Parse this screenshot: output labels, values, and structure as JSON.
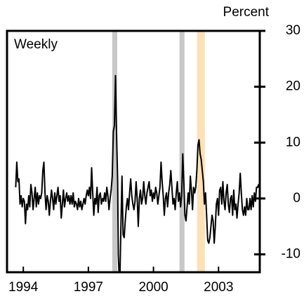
{
  "chart_data": {
    "type": "line",
    "y_label": "Percent",
    "annotation": "Weekly",
    "xlim": [
      1993.25,
      2004.9
    ],
    "xticks": [
      1994,
      1997,
      2000,
      2003
    ],
    "ylim": [
      -13.2,
      30
    ],
    "yticks": [
      -10,
      0,
      10,
      20,
      30
    ],
    "y_axis_side": "right",
    "shaded": [
      {
        "start": 1998.1,
        "end": 1998.33,
        "color": "#c8c8c8"
      },
      {
        "start": 2001.2,
        "end": 2001.43,
        "color": "#c8c8c8"
      },
      {
        "start": 2002.01,
        "end": 2002.37,
        "color": "#fde0b4"
      }
    ],
    "series": [
      {
        "color": "#000000",
        "x": [
          1993.65,
          1993.7,
          1993.75,
          1993.8,
          1993.85,
          1993.9,
          1993.95,
          1994,
          1994.05,
          1994.1,
          1994.15,
          1994.2,
          1994.25,
          1994.3,
          1994.35,
          1994.4,
          1994.45,
          1994.5,
          1994.55,
          1994.6,
          1994.65,
          1994.7,
          1994.75,
          1994.8,
          1994.85,
          1994.9,
          1994.95,
          1995,
          1995.05,
          1995.1,
          1995.15,
          1995.2,
          1995.25,
          1995.3,
          1995.35,
          1995.4,
          1995.45,
          1995.5,
          1995.55,
          1995.6,
          1995.65,
          1995.7,
          1995.75,
          1995.8,
          1995.85,
          1995.9,
          1995.95,
          1996,
          1996.05,
          1996.1,
          1996.15,
          1996.2,
          1996.25,
          1996.3,
          1996.35,
          1996.4,
          1996.45,
          1996.5,
          1996.55,
          1996.6,
          1996.65,
          1996.7,
          1996.75,
          1996.8,
          1996.85,
          1996.9,
          1996.95,
          1997,
          1997.05,
          1997.1,
          1997.15,
          1997.2,
          1997.25,
          1997.3,
          1997.35,
          1997.4,
          1997.45,
          1997.5,
          1997.55,
          1997.6,
          1997.65,
          1997.7,
          1997.75,
          1997.8,
          1997.85,
          1997.9,
          1997.95,
          1998,
          1998.05,
          1998.1,
          1998.15,
          1998.2,
          1998.25,
          1998.28,
          1998.32,
          1998.35,
          1998.38,
          1998.42,
          1998.46,
          1998.5,
          1998.55,
          1998.6,
          1998.65,
          1998.7,
          1998.75,
          1998.8,
          1998.85,
          1998.9,
          1998.95,
          1999,
          1999.05,
          1999.1,
          1999.15,
          1999.2,
          1999.25,
          1999.3,
          1999.35,
          1999.4,
          1999.45,
          1999.5,
          1999.55,
          1999.6,
          1999.65,
          1999.7,
          1999.75,
          1999.8,
          1999.85,
          1999.9,
          1999.95,
          2000,
          2000.05,
          2000.1,
          2000.15,
          2000.2,
          2000.25,
          2000.3,
          2000.35,
          2000.4,
          2000.45,
          2000.5,
          2000.55,
          2000.6,
          2000.65,
          2000.7,
          2000.75,
          2000.8,
          2000.85,
          2000.9,
          2000.95,
          2001,
          2001.05,
          2001.1,
          2001.15,
          2001.2,
          2001.25,
          2001.3,
          2001.35,
          2001.4,
          2001.45,
          2001.5,
          2001.55,
          2001.6,
          2001.65,
          2001.7,
          2001.75,
          2001.8,
          2001.85,
          2001.9,
          2001.95,
          2002,
          2002.05,
          2002.1,
          2002.15,
          2002.2,
          2002.25,
          2002.3,
          2002.35,
          2002.4,
          2002.45,
          2002.5,
          2002.55,
          2002.6,
          2002.65,
          2002.7,
          2002.75,
          2002.8,
          2002.85,
          2002.9,
          2002.95,
          2003,
          2003.05,
          2003.1,
          2003.15,
          2003.2,
          2003.25,
          2003.3,
          2003.35,
          2003.4,
          2003.45,
          2003.5,
          2003.55,
          2003.6,
          2003.65,
          2003.7,
          2003.75,
          2003.8,
          2003.85,
          2003.9,
          2003.95,
          2004,
          2004.05,
          2004.1,
          2004.15,
          2004.2,
          2004.25,
          2004.3,
          2004.35,
          2004.4,
          2004.45,
          2004.5,
          2004.55,
          2004.6,
          2004.65,
          2004.7,
          2004.75,
          2004.8,
          2004.85,
          2004.9
        ],
        "values": [
          2,
          6.5,
          3,
          3.5,
          -1,
          0.5,
          -1.5,
          0,
          -0.5,
          -4.5,
          -1,
          -2,
          0.5,
          -1.5,
          2.5,
          1,
          -2,
          0,
          2,
          -1.5,
          1,
          -1,
          0.5,
          0,
          1,
          5,
          6.5,
          1,
          -2,
          0.5,
          -0.5,
          -3,
          -0.5,
          1.5,
          0,
          -2,
          1,
          -1,
          0.5,
          2,
          -0.5,
          0.5,
          -3.5,
          -1,
          1.5,
          -1.5,
          0,
          1,
          -0.5,
          0.5,
          -1,
          0.5,
          -1,
          1,
          -1.5,
          -0.5,
          -1,
          -2,
          0,
          -1.5,
          -0.5,
          -2,
          -1,
          0,
          -1,
          0.5,
          1.5,
          0.5,
          2,
          0,
          5.5,
          1,
          -3,
          0,
          -1,
          2,
          -2.5,
          0.5,
          1,
          -1,
          0,
          -0.5,
          1,
          -0.5,
          2,
          0.5,
          -2,
          0,
          1.5,
          4,
          12,
          13,
          22,
          15,
          8,
          3,
          -10,
          -14,
          -13,
          -5,
          4,
          -6.5,
          -7,
          -4,
          -1.5,
          0,
          -2,
          1,
          3.5,
          0.5,
          -1,
          -2,
          -0.5,
          3,
          0,
          -5,
          0,
          1.5,
          -1,
          0,
          3,
          0.5,
          -1,
          1,
          2,
          3,
          0.5,
          1.5,
          -0.5,
          1,
          0,
          2,
          1,
          -1,
          0.5,
          2,
          6.5,
          3,
          0.5,
          -3,
          0,
          1,
          -1.5,
          1,
          2.5,
          5,
          2,
          -1,
          0,
          -2,
          1,
          3,
          -0.5,
          1,
          -1.5,
          0.5,
          8,
          3,
          -3,
          -4,
          -1.5,
          1,
          -1,
          4,
          1.5,
          -2,
          2,
          1,
          2,
          5,
          9.5,
          10.5,
          8,
          7,
          5,
          3,
          -1,
          1,
          -3,
          -7.5,
          -8,
          -7,
          -5,
          -3,
          -4,
          -8,
          -5,
          -1,
          0,
          -3,
          1.5,
          2,
          -1,
          3,
          -0.5,
          -2,
          1,
          2.5,
          -1,
          -2.5,
          0,
          0.5,
          -3,
          1.5,
          -2,
          -1,
          -3.5,
          -1,
          1,
          4.5,
          1,
          -2,
          -3,
          -1.5,
          -3,
          0,
          -2,
          -2,
          0,
          -2,
          0.5,
          -1.5,
          1,
          -0.5,
          2,
          2,
          2.5,
          1.5
        ]
      }
    ]
  }
}
